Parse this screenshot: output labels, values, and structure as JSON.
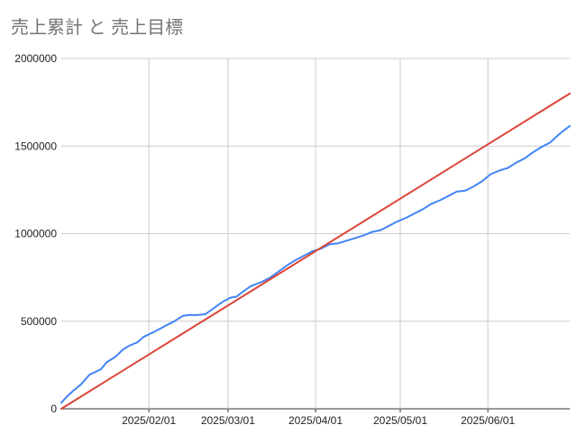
{
  "chart_data": {
    "type": "line",
    "title": "売上累計 と 売上目標",
    "xlabel": "",
    "ylabel": "",
    "x_range": [
      "2025-01-01",
      "2025-06-30"
    ],
    "ylim": [
      0,
      2000000
    ],
    "y_ticks": [
      {
        "value": 0,
        "label": "0"
      },
      {
        "value": 500000,
        "label": "500000"
      },
      {
        "value": 1000000,
        "label": "1000000"
      },
      {
        "value": 1500000,
        "label": "1500000"
      },
      {
        "value": 2000000,
        "label": "2000000"
      }
    ],
    "x_ticks": [
      {
        "date": "2025-02-01",
        "label": "2025/02/01"
      },
      {
        "date": "2025-03-01",
        "label": "2025/03/01"
      },
      {
        "date": "2025-04-01",
        "label": "2025/04/01"
      },
      {
        "date": "2025-05-01",
        "label": "2025/05/01"
      },
      {
        "date": "2025-06-01",
        "label": "2025/06/01"
      }
    ],
    "grid": true,
    "legend": "none",
    "series": [
      {
        "color": "#4285f4",
        "points": [
          [
            "2025-01-01",
            35000
          ],
          [
            "2025-01-03",
            70000
          ],
          [
            "2025-01-05",
            100000
          ],
          [
            "2025-01-08",
            140000
          ],
          [
            "2025-01-11",
            195000
          ],
          [
            "2025-01-15",
            225000
          ],
          [
            "2025-01-17",
            265000
          ],
          [
            "2025-01-20",
            295000
          ],
          [
            "2025-01-23",
            340000
          ],
          [
            "2025-01-25",
            360000
          ],
          [
            "2025-01-28",
            380000
          ],
          [
            "2025-01-30",
            410000
          ],
          [
            "2025-02-03",
            440000
          ],
          [
            "2025-02-07",
            475000
          ],
          [
            "2025-02-10",
            500000
          ],
          [
            "2025-02-13",
            530000
          ],
          [
            "2025-02-15",
            535000
          ],
          [
            "2025-02-18",
            535000
          ],
          [
            "2025-02-21",
            540000
          ],
          [
            "2025-02-24",
            575000
          ],
          [
            "2025-02-27",
            610000
          ],
          [
            "2025-03-02",
            635000
          ],
          [
            "2025-03-04",
            640000
          ],
          [
            "2025-03-06",
            665000
          ],
          [
            "2025-03-09",
            700000
          ],
          [
            "2025-03-13",
            725000
          ],
          [
            "2025-03-16",
            750000
          ],
          [
            "2025-03-19",
            785000
          ],
          [
            "2025-03-22",
            820000
          ],
          [
            "2025-03-25",
            850000
          ],
          [
            "2025-03-28",
            875000
          ],
          [
            "2025-03-31",
            900000
          ],
          [
            "2025-04-03",
            915000
          ],
          [
            "2025-04-06",
            940000
          ],
          [
            "2025-04-09",
            945000
          ],
          [
            "2025-04-12",
            960000
          ],
          [
            "2025-04-15",
            975000
          ],
          [
            "2025-04-18",
            990000
          ],
          [
            "2025-04-21",
            1010000
          ],
          [
            "2025-04-24",
            1020000
          ],
          [
            "2025-04-27",
            1045000
          ],
          [
            "2025-04-30",
            1070000
          ],
          [
            "2025-05-03",
            1090000
          ],
          [
            "2025-05-06",
            1115000
          ],
          [
            "2025-05-09",
            1140000
          ],
          [
            "2025-05-12",
            1170000
          ],
          [
            "2025-05-15",
            1190000
          ],
          [
            "2025-05-18",
            1215000
          ],
          [
            "2025-05-21",
            1240000
          ],
          [
            "2025-05-24",
            1245000
          ],
          [
            "2025-05-27",
            1270000
          ],
          [
            "2025-05-30",
            1300000
          ],
          [
            "2025-06-02",
            1340000
          ],
          [
            "2025-06-05",
            1360000
          ],
          [
            "2025-06-08",
            1375000
          ],
          [
            "2025-06-11",
            1405000
          ],
          [
            "2025-06-14",
            1430000
          ],
          [
            "2025-06-17",
            1465000
          ],
          [
            "2025-06-20",
            1495000
          ],
          [
            "2025-06-23",
            1520000
          ],
          [
            "2025-06-26",
            1565000
          ],
          [
            "2025-06-28",
            1590000
          ],
          [
            "2025-06-30",
            1615000
          ]
        ]
      },
      {
        "color": "#db4437",
        "points": [
          [
            "2025-01-01",
            0
          ],
          [
            "2025-06-30",
            1800000
          ]
        ]
      }
    ]
  }
}
